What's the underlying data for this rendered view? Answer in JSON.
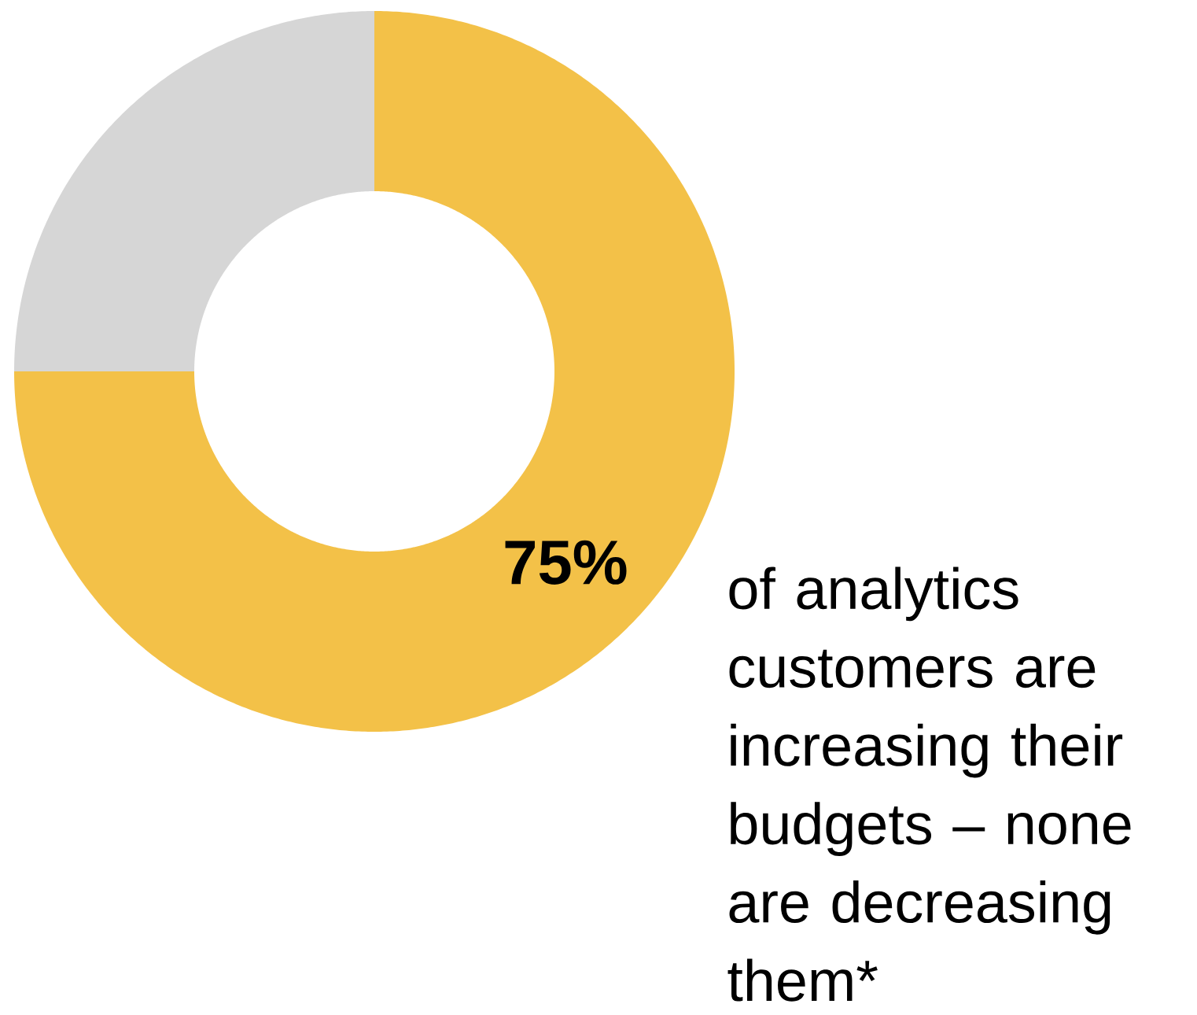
{
  "chart_data": {
    "type": "donut",
    "categories": [
      null,
      null
    ],
    "values": [
      75,
      25
    ],
    "colors": [
      "#f3c148",
      "#d6d6d6"
    ],
    "value_labels": [
      "75%",
      null
    ],
    "annotations": [
      "of analytics customers are increasing their budgets – none are decreasing them*"
    ]
  }
}
